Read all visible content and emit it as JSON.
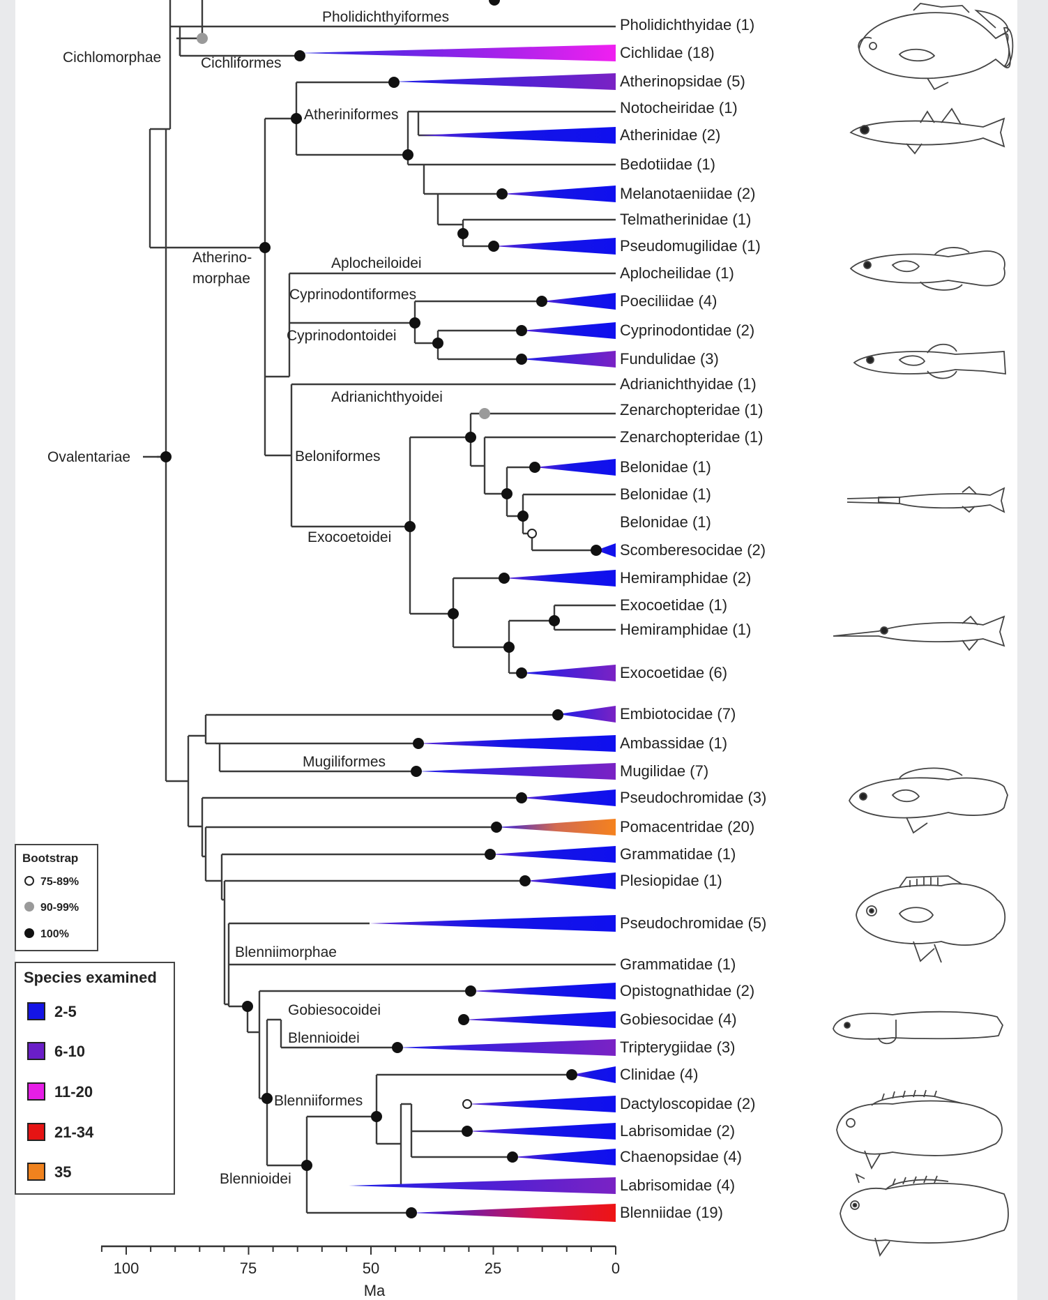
{
  "clades": {
    "pholidichthyiformes": "Pholidichthyiformes",
    "cichlomorphae": "Cichlomorphae",
    "cichliformes": "Cichliformes",
    "atheriniformes": "Atheriniformes",
    "atherinomorphae_1": "Atherino-",
    "atherinomorphae_2": "morphae",
    "aplocheiloidei": "Aplocheiloidei",
    "cyprinodontiformes": "Cyprinodontiformes",
    "cyprinodontoidei": "Cyprinodontoidei",
    "adrianichthyoidei": "Adrianichthyoidei",
    "beloniformes": "Beloniformes",
    "exocoetoidei": "Exocoetoidei",
    "ovalentariae": "Ovalentariae",
    "mugiliformes": "Mugiliformes",
    "blenniimorphae": "Blenniimorphae",
    "gobiesocoidei": "Gobiesocoidei",
    "blennioidei_a": "Blennioidei",
    "blenniiformes": "Blenniiformes",
    "blennioidei_b": "Blennioidei"
  },
  "tips": [
    {
      "label": "Pholidichthyidae (1)",
      "bin": "single"
    },
    {
      "label": "Cichlidae (18)",
      "bin": "11-20"
    },
    {
      "label": "Atherinopsidae (5)",
      "bin": "2-5"
    },
    {
      "label": "Notocheiridae (1)",
      "bin": "single"
    },
    {
      "label": "Atherinidae (2)",
      "bin": "2-5"
    },
    {
      "label": "Bedotiidae (1)",
      "bin": "single"
    },
    {
      "label": "Melanotaeniidae (2)",
      "bin": "2-5"
    },
    {
      "label": "Telmatherinidae (1)",
      "bin": "single"
    },
    {
      "label": "Pseudomugilidae (1)",
      "bin": "2-5"
    },
    {
      "label": "Aplocheilidae (1)",
      "bin": "single"
    },
    {
      "label": "Poeciliidae (4)",
      "bin": "2-5"
    },
    {
      "label": "Cyprinodontidae (2)",
      "bin": "2-5"
    },
    {
      "label": "Fundulidae (3)",
      "bin": "6-10"
    },
    {
      "label": "Adrianichthyidae (1)",
      "bin": "single"
    },
    {
      "label": "Zenarchopteridae (1)",
      "bin": "single"
    },
    {
      "label": "Zenarchopteridae (1)",
      "bin": "single"
    },
    {
      "label": "Belonidae (1)",
      "bin": "2-5"
    },
    {
      "label": "Belonidae (1)",
      "bin": "single"
    },
    {
      "label": "Belonidae (1)",
      "bin": "single"
    },
    {
      "label": "Scomberesocidae (2)",
      "bin": "2-5"
    },
    {
      "label": "Hemiramphidae (2)",
      "bin": "2-5"
    },
    {
      "label": "Exocoetidae (1)",
      "bin": "single"
    },
    {
      "label": "Hemiramphidae (1)",
      "bin": "single"
    },
    {
      "label": "Exocoetidae (6)",
      "bin": "6-10"
    },
    {
      "label": "Embiotocidae (7)",
      "bin": "6-10"
    },
    {
      "label": "Ambassidae (1)",
      "bin": "2-5"
    },
    {
      "label": "Mugilidae (7)",
      "bin": "6-10"
    },
    {
      "label": "Pseudochromidae (3)",
      "bin": "2-5"
    },
    {
      "label": "Pomacentridae (20)",
      "bin": "35"
    },
    {
      "label": "Grammatidae (1)",
      "bin": "2-5"
    },
    {
      "label": "Plesiopidae (1)",
      "bin": "2-5"
    },
    {
      "label": "Pseudochromidae (5)",
      "bin": "2-5"
    },
    {
      "label": "Grammatidae (1)",
      "bin": "single"
    },
    {
      "label": "Opistognathidae (2)",
      "bin": "2-5"
    },
    {
      "label": "Gobiesocidae (4)",
      "bin": "2-5"
    },
    {
      "label": "Tripterygiidae (3)",
      "bin": "6-10"
    },
    {
      "label": "Clinidae (4)",
      "bin": "2-5"
    },
    {
      "label": "Dactyloscopidae (2)",
      "bin": "2-5"
    },
    {
      "label": "Labrisomidae (2)",
      "bin": "2-5"
    },
    {
      "label": "Chaenopsidae (4)",
      "bin": "2-5"
    },
    {
      "label": "Labrisomidae (4)",
      "bin": "6-10"
    },
    {
      "label": "Blenniidae (19)",
      "bin": "21-34"
    }
  ],
  "axis": {
    "label": "Ma",
    "ticks": [
      "100",
      "75",
      "50",
      "25",
      "0"
    ]
  },
  "bootstrap_legend": {
    "title": "Bootstrap",
    "items": [
      {
        "label": "75-89%",
        "kind": "open"
      },
      {
        "label": "90-99%",
        "kind": "gray"
      },
      {
        "label": "100%",
        "kind": "black"
      }
    ]
  },
  "species_legend": {
    "title": "Species examined",
    "items": [
      {
        "label": "2-5",
        "color": "#1414e6"
      },
      {
        "label": "6-10",
        "color": "#6a1ec8"
      },
      {
        "label": "11-20",
        "color": "#e61ee6"
      },
      {
        "label": "21-34",
        "color": "#e61414"
      },
      {
        "label": "35",
        "color": "#f0821e"
      }
    ]
  },
  "colors": {
    "branch": "#3a3a3a",
    "bin_2_5": "#1414e6",
    "bin_6_10": "#6a1ec8",
    "bin_11_20": "#e61ee6",
    "bin_21_34": "#e61414",
    "bin_35": "#f0821e",
    "gray_node": "#9a9a9a"
  }
}
